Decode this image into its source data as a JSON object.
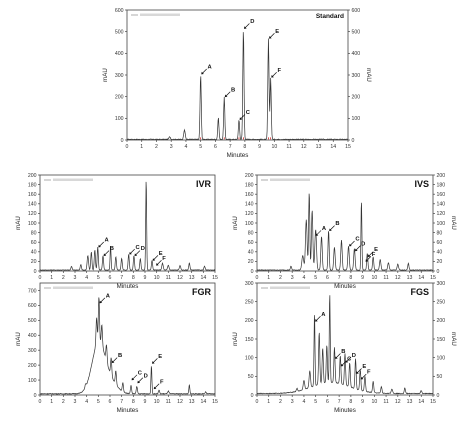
{
  "figure": {
    "units": "mAU",
    "xlabel": "Minutes"
  },
  "colors": {
    "trace": "#333333",
    "standard_marks": "#cc2222",
    "axis": "#444444"
  },
  "chart_data": [
    {
      "id": "standard",
      "type": "line",
      "title": "Standard",
      "xlabel": "Minutes",
      "ylabel": "mAU",
      "xlim": [
        0,
        15
      ],
      "ylim": [
        0,
        600
      ],
      "xticks": [
        0,
        1,
        2,
        3,
        4,
        5,
        6,
        7,
        8,
        9,
        10,
        11,
        12,
        13,
        14,
        15
      ],
      "yticks": [
        0,
        100,
        200,
        300,
        400,
        500,
        600
      ],
      "baseline": 3,
      "peaks": [
        {
          "x": 2.9,
          "y": 12,
          "w": 0.05
        },
        {
          "x": 3.9,
          "y": 45,
          "w": 0.05
        },
        {
          "x": 5.0,
          "y": 300,
          "w": 0.04
        },
        {
          "x": 6.2,
          "y": 100,
          "w": 0.04
        },
        {
          "x": 6.6,
          "y": 195,
          "w": 0.04
        },
        {
          "x": 7.6,
          "y": 90,
          "w": 0.04
        },
        {
          "x": 7.9,
          "y": 510,
          "w": 0.04
        },
        {
          "x": 9.6,
          "y": 465,
          "w": 0.04
        },
        {
          "x": 9.75,
          "y": 285,
          "w": 0.04
        }
      ],
      "annotations": [
        {
          "label": "A",
          "x": 5.0,
          "y": 300
        },
        {
          "label": "B",
          "x": 6.6,
          "y": 195
        },
        {
          "label": "C",
          "x": 7.6,
          "y": 90
        },
        {
          "label": "D",
          "x": 7.9,
          "y": 510
        },
        {
          "label": "E",
          "x": 9.6,
          "y": 465
        },
        {
          "label": "F",
          "x": 9.75,
          "y": 285
        }
      ]
    },
    {
      "id": "ivr",
      "type": "line",
      "title": "IVR",
      "xlabel": "Minutes",
      "ylabel": "mAU",
      "xlim": [
        0,
        15
      ],
      "ylim": [
        0,
        200
      ],
      "xticks": [
        0,
        1,
        2,
        3,
        4,
        5,
        6,
        7,
        8,
        9,
        10,
        11,
        12,
        13,
        14,
        15
      ],
      "yticks": [
        0,
        20,
        40,
        60,
        80,
        100,
        120,
        140,
        160,
        180,
        200
      ],
      "baseline": 2,
      "peaks": [
        {
          "x": 2.7,
          "y": 8,
          "w": 0.05
        },
        {
          "x": 3.5,
          "y": 12,
          "w": 0.05
        },
        {
          "x": 4.1,
          "y": 30,
          "w": 0.06
        },
        {
          "x": 4.4,
          "y": 38,
          "w": 0.05
        },
        {
          "x": 4.7,
          "y": 42,
          "w": 0.05
        },
        {
          "x": 4.95,
          "y": 48,
          "w": 0.05
        },
        {
          "x": 5.4,
          "y": 30,
          "w": 0.05
        },
        {
          "x": 6.05,
          "y": 52,
          "w": 0.04
        },
        {
          "x": 6.5,
          "y": 28,
          "w": 0.05
        },
        {
          "x": 7.0,
          "y": 25,
          "w": 0.05
        },
        {
          "x": 7.6,
          "y": 33,
          "w": 0.05
        },
        {
          "x": 8.05,
          "y": 30,
          "w": 0.05
        },
        {
          "x": 8.6,
          "y": 24,
          "w": 0.05
        },
        {
          "x": 9.1,
          "y": 190,
          "w": 0.04
        },
        {
          "x": 9.6,
          "y": 20,
          "w": 0.05
        },
        {
          "x": 10.5,
          "y": 14,
          "w": 0.06
        },
        {
          "x": 11.0,
          "y": 10,
          "w": 0.06
        },
        {
          "x": 12.0,
          "y": 9,
          "w": 0.06
        },
        {
          "x": 12.8,
          "y": 15,
          "w": 0.05
        },
        {
          "x": 14.1,
          "y": 8,
          "w": 0.05
        }
      ],
      "annotations": [
        {
          "label": "A",
          "x": 4.95,
          "y": 48
        },
        {
          "label": "B",
          "x": 5.4,
          "y": 30
        },
        {
          "label": "C",
          "x": 7.6,
          "y": 33
        },
        {
          "label": "D",
          "x": 8.05,
          "y": 30
        },
        {
          "label": "E",
          "x": 9.6,
          "y": 20
        },
        {
          "label": "F",
          "x": 9.9,
          "y": 10
        }
      ]
    },
    {
      "id": "ivs",
      "type": "line",
      "title": "IVS",
      "xlabel": "Minutes",
      "ylabel": "mAU",
      "xlim": [
        0,
        15
      ],
      "ylim": [
        0,
        200
      ],
      "xticks": [
        0,
        1,
        2,
        3,
        4,
        5,
        6,
        7,
        8,
        9,
        10,
        11,
        12,
        13,
        14,
        15
      ],
      "yticks": [
        0,
        20,
        40,
        60,
        80,
        100,
        120,
        140,
        160,
        180,
        200
      ],
      "baseline": 2,
      "peaks": [
        {
          "x": 2.9,
          "y": 8,
          "w": 0.05
        },
        {
          "x": 3.9,
          "y": 30,
          "w": 0.08
        },
        {
          "x": 4.2,
          "y": 105,
          "w": 0.07
        },
        {
          "x": 4.45,
          "y": 162,
          "w": 0.05
        },
        {
          "x": 4.7,
          "y": 125,
          "w": 0.06
        },
        {
          "x": 5.0,
          "y": 85,
          "w": 0.07
        },
        {
          "x": 5.5,
          "y": 70,
          "w": 0.06
        },
        {
          "x": 6.1,
          "y": 82,
          "w": 0.05
        },
        {
          "x": 6.6,
          "y": 48,
          "w": 0.06
        },
        {
          "x": 7.2,
          "y": 62,
          "w": 0.06
        },
        {
          "x": 7.8,
          "y": 50,
          "w": 0.06
        },
        {
          "x": 8.3,
          "y": 45,
          "w": 0.06
        },
        {
          "x": 8.9,
          "y": 145,
          "w": 0.04
        },
        {
          "x": 9.4,
          "y": 35,
          "w": 0.05
        },
        {
          "x": 9.9,
          "y": 28,
          "w": 0.05
        },
        {
          "x": 10.5,
          "y": 22,
          "w": 0.06
        },
        {
          "x": 11.2,
          "y": 15,
          "w": 0.06
        },
        {
          "x": 12.0,
          "y": 12,
          "w": 0.06
        },
        {
          "x": 12.9,
          "y": 14,
          "w": 0.05
        }
      ],
      "annotations": [
        {
          "label": "A",
          "x": 4.95,
          "y": 72
        },
        {
          "label": "B",
          "x": 6.1,
          "y": 82
        },
        {
          "label": "C",
          "x": 7.8,
          "y": 50
        },
        {
          "label": "D",
          "x": 8.3,
          "y": 40
        },
        {
          "label": "E",
          "x": 9.4,
          "y": 28
        },
        {
          "label": "F",
          "x": 9.2,
          "y": 18
        }
      ]
    },
    {
      "id": "fgr",
      "type": "line",
      "title": "FGR",
      "xlabel": "Minutes",
      "ylabel": "mAU",
      "xlim": [
        0,
        15
      ],
      "ylim": [
        0,
        750
      ],
      "xticks": [
        0,
        1,
        2,
        3,
        4,
        5,
        6,
        7,
        8,
        9,
        10,
        11,
        12,
        13,
        14,
        15
      ],
      "yticks": [
        0,
        100,
        200,
        300,
        400,
        500,
        600,
        700
      ],
      "baseline": 8,
      "broad": [
        {
          "x": 5.0,
          "y": 330,
          "w": 0.55
        },
        {
          "x": 6.0,
          "y": 80,
          "w": 0.6
        }
      ],
      "peaks": [
        {
          "x": 3.9,
          "y": 20,
          "w": 0.05
        },
        {
          "x": 4.85,
          "y": 180,
          "w": 0.05
        },
        {
          "x": 5.05,
          "y": 300,
          "w": 0.05
        },
        {
          "x": 5.3,
          "y": 140,
          "w": 0.05
        },
        {
          "x": 5.7,
          "y": 110,
          "w": 0.05
        },
        {
          "x": 6.1,
          "y": 120,
          "w": 0.05
        },
        {
          "x": 6.5,
          "y": 90,
          "w": 0.05
        },
        {
          "x": 7.1,
          "y": 60,
          "w": 0.05
        },
        {
          "x": 7.8,
          "y": 55,
          "w": 0.05
        },
        {
          "x": 8.3,
          "y": 50,
          "w": 0.05
        },
        {
          "x": 9.55,
          "y": 190,
          "w": 0.04
        },
        {
          "x": 10.2,
          "y": 25,
          "w": 0.05
        },
        {
          "x": 11.0,
          "y": 18,
          "w": 0.06
        },
        {
          "x": 12.8,
          "y": 60,
          "w": 0.04
        },
        {
          "x": 14.2,
          "y": 12,
          "w": 0.05
        }
      ],
      "annotations": [
        {
          "label": "A",
          "x": 5.05,
          "y": 610
        },
        {
          "label": "B",
          "x": 6.1,
          "y": 210
        },
        {
          "label": "C",
          "x": 7.8,
          "y": 95
        },
        {
          "label": "D",
          "x": 8.3,
          "y": 75
        },
        {
          "label": "E",
          "x": 9.55,
          "y": 205
        },
        {
          "label": "F",
          "x": 9.7,
          "y": 35
        }
      ]
    },
    {
      "id": "fgs",
      "type": "line",
      "title": "FGS",
      "xlabel": "Minutes",
      "ylabel": "mAU",
      "xlim": [
        0,
        15
      ],
      "ylim": [
        0,
        300
      ],
      "xticks": [
        0,
        1,
        2,
        3,
        4,
        5,
        6,
        7,
        8,
        9,
        10,
        11,
        12,
        13,
        14,
        15
      ],
      "yticks": [
        0,
        50,
        100,
        150,
        200,
        250,
        300
      ],
      "baseline": 4,
      "broad": [
        {
          "x": 6.3,
          "y": 30,
          "w": 1.6
        }
      ],
      "peaks": [
        {
          "x": 3.4,
          "y": 8,
          "w": 0.05
        },
        {
          "x": 4.0,
          "y": 25,
          "w": 0.06
        },
        {
          "x": 4.5,
          "y": 45,
          "w": 0.06
        },
        {
          "x": 4.9,
          "y": 195,
          "w": 0.04
        },
        {
          "x": 5.3,
          "y": 140,
          "w": 0.05
        },
        {
          "x": 5.6,
          "y": 95,
          "w": 0.05
        },
        {
          "x": 5.95,
          "y": 100,
          "w": 0.05
        },
        {
          "x": 6.2,
          "y": 240,
          "w": 0.04
        },
        {
          "x": 6.6,
          "y": 95,
          "w": 0.05
        },
        {
          "x": 7.1,
          "y": 75,
          "w": 0.05
        },
        {
          "x": 7.5,
          "y": 85,
          "w": 0.05
        },
        {
          "x": 7.9,
          "y": 65,
          "w": 0.05
        },
        {
          "x": 8.4,
          "y": 80,
          "w": 0.05
        },
        {
          "x": 8.8,
          "y": 55,
          "w": 0.05
        },
        {
          "x": 9.2,
          "y": 40,
          "w": 0.05
        },
        {
          "x": 9.9,
          "y": 30,
          "w": 0.05
        },
        {
          "x": 10.6,
          "y": 18,
          "w": 0.05
        },
        {
          "x": 11.5,
          "y": 12,
          "w": 0.06
        },
        {
          "x": 12.6,
          "y": 15,
          "w": 0.05
        },
        {
          "x": 14.0,
          "y": 8,
          "w": 0.05
        }
      ],
      "annotations": [
        {
          "label": "A",
          "x": 4.9,
          "y": 195
        },
        {
          "label": "B",
          "x": 6.6,
          "y": 95
        },
        {
          "label": "C",
          "x": 7.1,
          "y": 75
        },
        {
          "label": "D",
          "x": 7.5,
          "y": 85
        },
        {
          "label": "E",
          "x": 8.4,
          "y": 55
        },
        {
          "label": "F",
          "x": 8.8,
          "y": 40
        }
      ]
    }
  ]
}
